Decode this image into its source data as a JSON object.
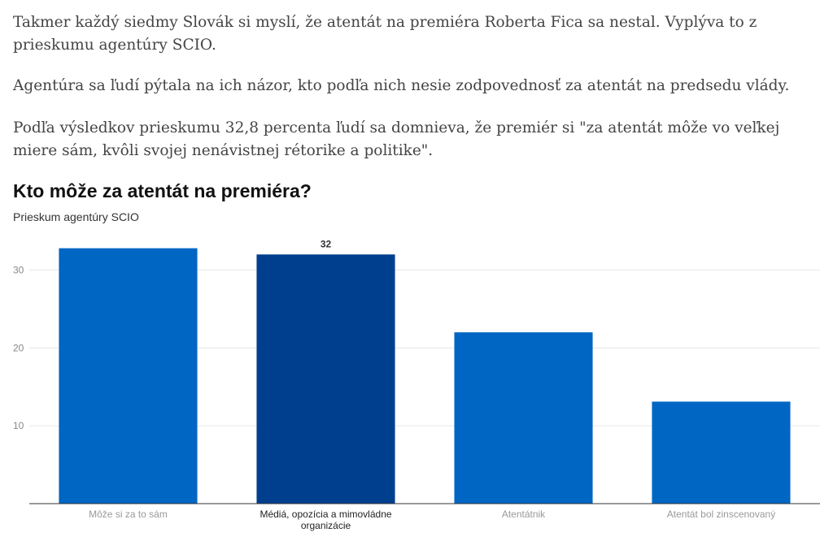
{
  "article": {
    "paragraphs": [
      "Takmer každý siedmy Slovák si myslí, že atentát na premiéra Roberta Fica sa nestal. Vyplýva to z prieskumu agentúry SCIO.",
      "Agentúra sa ľudí pýtala na ich názor, kto podľa nich nesie zodpovednosť za atentát na predsedu vlády.",
      "Podľa výsledkov prieskumu 32,8 percenta ľudí sa domnieva, že premiér si \"za atentát môže vo veľkej miere sám, kvôli svojej nenávistnej rétorike a politike\"."
    ]
  },
  "chart_data": {
    "type": "bar",
    "title": "Kto môže za atentát na premiéra?",
    "subtitle": "Prieskum agentúry SCIO",
    "categories": [
      "Môže si za to sám",
      [
        "Médiá, opozícia a mimovládne",
        "organizácie"
      ],
      "Atentátnik",
      "Atentát bol zinscenovaný"
    ],
    "values": [
      32.8,
      32,
      22,
      13.1
    ],
    "highlighted_index": 1,
    "data_labels": [
      "",
      "32",
      "",
      ""
    ],
    "yticks": [
      10,
      20,
      30
    ],
    "ylim": [
      0,
      33.8
    ],
    "grid": true,
    "colors": {
      "bar": "#0066c4",
      "highlight": "#003f8e",
      "grid": "#e6e6e6",
      "axis": "#333333"
    }
  }
}
